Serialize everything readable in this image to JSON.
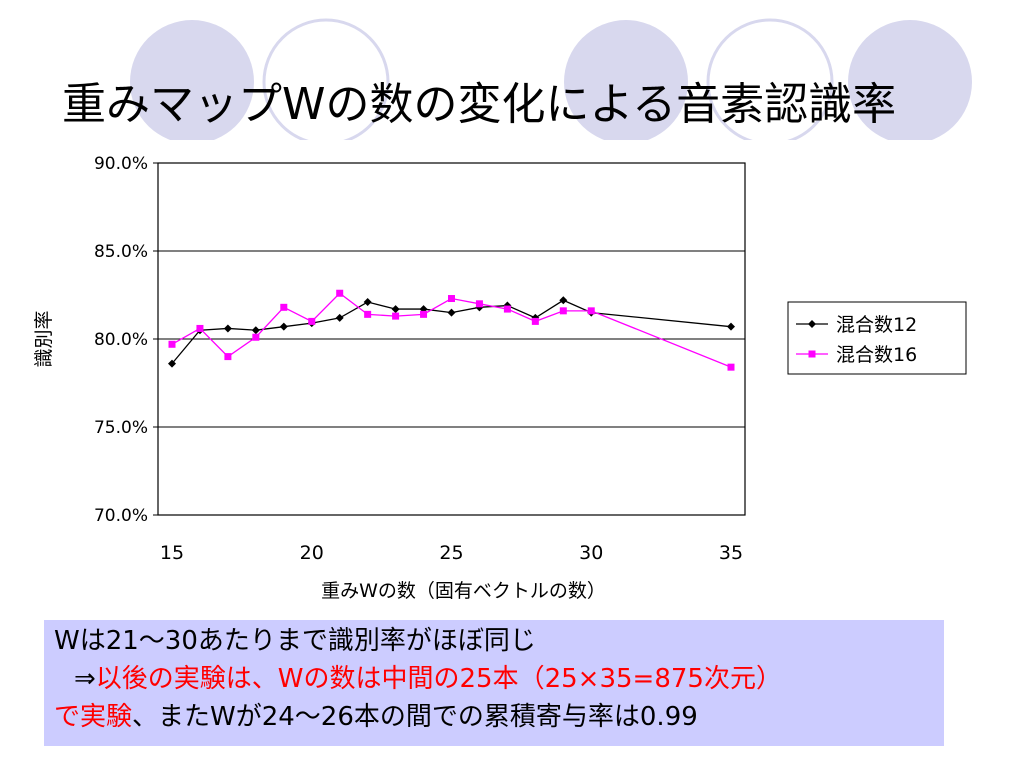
{
  "title": "重みマップWの数の変化による音素認識率",
  "colors": {
    "series1": "#000000",
    "series2": "#ff00ff",
    "accent_red": "#ff0000",
    "note_bg": "#ccccff",
    "deco_circles": "#d8d8ee"
  },
  "chart_data": {
    "type": "line",
    "title": "",
    "xlabel": "重みWの数（固有ベクトルの数）",
    "ylabel": "識別率",
    "xlim": [
      15,
      35
    ],
    "ylim": [
      70,
      90
    ],
    "x_ticks": [
      "15",
      "20",
      "25",
      "30",
      "35"
    ],
    "y_ticks": [
      "70.0%",
      "75.0%",
      "80.0%",
      "85.0%",
      "90.0%"
    ],
    "grid": "horizontal",
    "legend": "right",
    "series": [
      {
        "name": "混合数12",
        "color": "#000000",
        "marker": "diamond",
        "x": [
          15,
          16,
          17,
          18,
          19,
          20,
          21,
          22,
          23,
          24,
          25,
          26,
          27,
          28,
          29,
          30,
          35
        ],
        "values": [
          78.6,
          80.5,
          80.6,
          80.5,
          80.7,
          80.9,
          81.2,
          82.1,
          81.7,
          81.7,
          81.5,
          81.8,
          81.9,
          81.2,
          82.2,
          81.5,
          80.7
        ]
      },
      {
        "name": "混合数16",
        "color": "#ff00ff",
        "marker": "square",
        "x": [
          15,
          16,
          17,
          18,
          19,
          20,
          21,
          22,
          23,
          24,
          25,
          26,
          27,
          28,
          29,
          30,
          35
        ],
        "values": [
          79.7,
          80.6,
          79.0,
          80.1,
          81.8,
          81.0,
          82.6,
          81.4,
          81.3,
          81.4,
          82.3,
          82.0,
          81.7,
          81.0,
          81.6,
          81.6,
          78.4
        ]
      }
    ]
  },
  "note": {
    "line1": "Wは21～30あたりまで識別率がほぼ同じ",
    "line2_indent": "⇒",
    "line2_red": "以後の実験は、Wの数は中間の25本（25×35=875次元）",
    "line3_red": "で実験",
    "line3_rest": "、またWが24～26本の間での累積寄与率は0.99"
  }
}
